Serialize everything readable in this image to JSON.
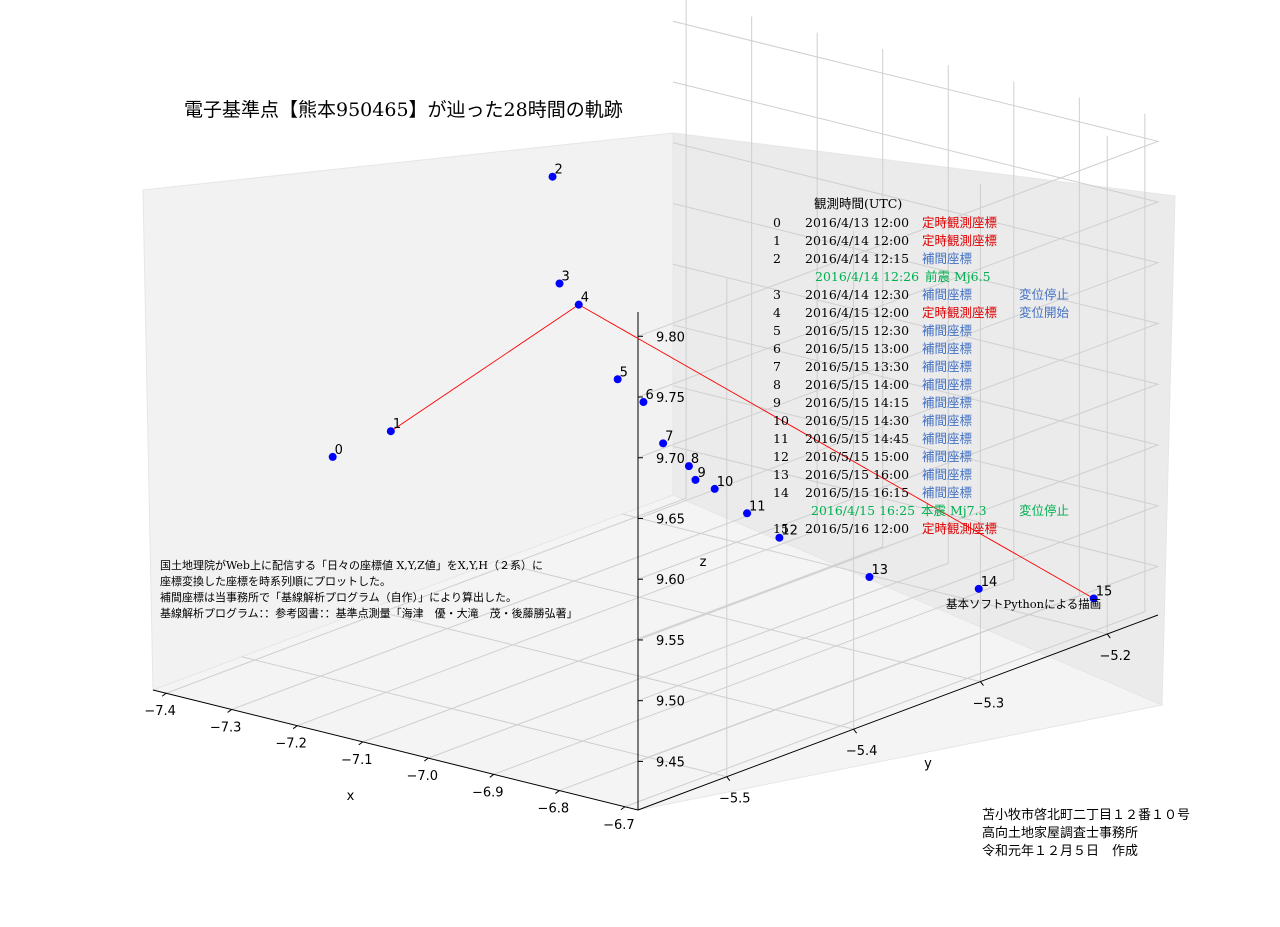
{
  "chart_data": {
    "type": "scatter",
    "projection": "3d",
    "title": "電子基準点【熊本950465】が辿った28時間の軌跡",
    "xlabel": "x",
    "ylabel": "y",
    "zlabel": "z",
    "grid": true,
    "x_ticks": [
      "−7.4",
      "−7.3",
      "−7.2",
      "−7.1",
      "−7.0",
      "−6.9",
      "−6.8",
      "−6.7"
    ],
    "y_ticks": [
      "−5.5",
      "−5.4",
      "−5.3",
      "−5.2"
    ],
    "z_ticks": [
      "9.80",
      "9.75",
      "9.70",
      "9.65",
      "9.60",
      "9.55",
      "9.50",
      "9.45"
    ],
    "points": [
      {
        "label": "0",
        "x": -7.32,
        "y": -5.48,
        "z": 9.58
      },
      {
        "label": "1",
        "x": -7.27,
        "y": -5.46,
        "z": 9.6
      },
      {
        "label": "2",
        "x": -7.12,
        "y": -5.41,
        "z": 9.81
      },
      {
        "label": "3",
        "x": -7.09,
        "y": -5.42,
        "z": 9.73
      },
      {
        "label": "4",
        "x": -7.08,
        "y": -5.41,
        "z": 9.71
      },
      {
        "label": "5",
        "x": -7.04,
        "y": -5.4,
        "z": 9.65
      },
      {
        "label": "6",
        "x": -7.02,
        "y": -5.39,
        "z": 9.63
      },
      {
        "label": "7",
        "x": -6.99,
        "y": -5.39,
        "z": 9.6
      },
      {
        "label": "8",
        "x": -6.97,
        "y": -5.38,
        "z": 9.58
      },
      {
        "label": "9",
        "x": -6.96,
        "y": -5.38,
        "z": 9.57
      },
      {
        "label": "10",
        "x": -6.95,
        "y": -5.37,
        "z": 9.56
      },
      {
        "label": "11",
        "x": -6.92,
        "y": -5.36,
        "z": 9.54
      },
      {
        "label": "12",
        "x": -6.89,
        "y": -5.35,
        "z": 9.52
      },
      {
        "label": "13",
        "x": -6.83,
        "y": -5.31,
        "z": 9.48
      },
      {
        "label": "14",
        "x": -6.76,
        "y": -5.26,
        "z": 9.46
      },
      {
        "label": "15",
        "x": -6.72,
        "y": -5.19,
        "z": 9.43
      }
    ],
    "path_labels": [
      "1",
      "4",
      "15"
    ],
    "colors": {
      "point": "#0000ff",
      "path": "#ff0000",
      "fixed": "#e00000",
      "interp": "#4472c4",
      "quake": "#00b050"
    }
  },
  "legend": {
    "header": "観測時間(UTC)",
    "rows": [
      {
        "idx": "0",
        "time": "2016/4/13 12:00",
        "kind": "定時観測座標",
        "kind_color": "#e00000",
        "note": "",
        "note_color": ""
      },
      {
        "idx": "1",
        "time": "2016/4/14 12:00",
        "kind": "定時観測座標",
        "kind_color": "#e00000",
        "note": "",
        "note_color": ""
      },
      {
        "idx": "2",
        "time": "2016/4/14 12:15",
        "kind": "補間座標",
        "kind_color": "#4472c4",
        "note": "",
        "note_color": ""
      },
      {
        "idx": "",
        "time": "2016/4/14 12:26",
        "kind": "前震 Mj6.5",
        "kind_color": "#00b050",
        "note": "",
        "note_color": "",
        "event": true,
        "event_color": "#00b050"
      },
      {
        "idx": "3",
        "time": "2016/4/14 12:30",
        "kind": "補間座標",
        "kind_color": "#4472c4",
        "note": "変位停止",
        "note_color": "#4472c4"
      },
      {
        "idx": "4",
        "time": "2016/4/15 12:00",
        "kind": "定時観測座標",
        "kind_color": "#e00000",
        "note": "変位開始",
        "note_color": "#4472c4"
      },
      {
        "idx": "5",
        "time": "2016/5/15 12:30",
        "kind": "補間座標",
        "kind_color": "#4472c4",
        "note": "",
        "note_color": ""
      },
      {
        "idx": "6",
        "time": "2016/5/15 13:00",
        "kind": "補間座標",
        "kind_color": "#4472c4",
        "note": "",
        "note_color": ""
      },
      {
        "idx": "7",
        "time": "2016/5/15 13:30",
        "kind": "補間座標",
        "kind_color": "#4472c4",
        "note": "",
        "note_color": ""
      },
      {
        "idx": "8",
        "time": "2016/5/15 14:00",
        "kind": "補間座標",
        "kind_color": "#4472c4",
        "note": "",
        "note_color": ""
      },
      {
        "idx": "9",
        "time": "2016/5/15 14:15",
        "kind": "補間座標",
        "kind_color": "#4472c4",
        "note": "",
        "note_color": ""
      },
      {
        "idx": "10",
        "time": "2016/5/15 14:30",
        "kind": "補間座標",
        "kind_color": "#4472c4",
        "note": "",
        "note_color": ""
      },
      {
        "idx": "11",
        "time": "2016/5/15 14:45",
        "kind": "補間座標",
        "kind_color": "#4472c4",
        "note": "",
        "note_color": ""
      },
      {
        "idx": "12",
        "time": "2016/5/15 15:00",
        "kind": "補間座標",
        "kind_color": "#4472c4",
        "note": "",
        "note_color": ""
      },
      {
        "idx": "13",
        "time": "2016/5/15 16:00",
        "kind": "補間座標",
        "kind_color": "#4472c4",
        "note": "",
        "note_color": ""
      },
      {
        "idx": "14",
        "time": "2016/5/15 16:15",
        "kind": "補間座標",
        "kind_color": "#4472c4",
        "note": "",
        "note_color": ""
      },
      {
        "idx": "",
        "time": "2016/4/15 16:25",
        "kind": "本震 Mj7.3",
        "kind_color": "#00b050",
        "note": "変位停止",
        "note_color": "#00b050",
        "event": true,
        "event_color": "#00b050"
      },
      {
        "idx": "15",
        "time": "2016/5/16 12:00",
        "kind": "定時観測座標",
        "kind_color": "#e00000",
        "note": "",
        "note_color": ""
      }
    ]
  },
  "notes": {
    "left_lines": [
      "国土地理院がWeb上に配信する「日々の座標値 X,Y,Z値」をX,Y,H（２系）に",
      "座標変換した座標を時系列順にプロットした。",
      "補間座標は当事務所で「基線解析プログラム（自作）」により算出した。",
      "基線解析プログラム：：参考図書：：基準点測量「海津　優・大滝　茂・後藤勝弘著」"
    ],
    "software": "基本ソフトPythonによる描画",
    "footer_lines": [
      "苫小牧市啓北町二丁目１２番１０号",
      "高向土地家屋調査士事務所",
      "令和元年１２月５日　作成"
    ]
  }
}
